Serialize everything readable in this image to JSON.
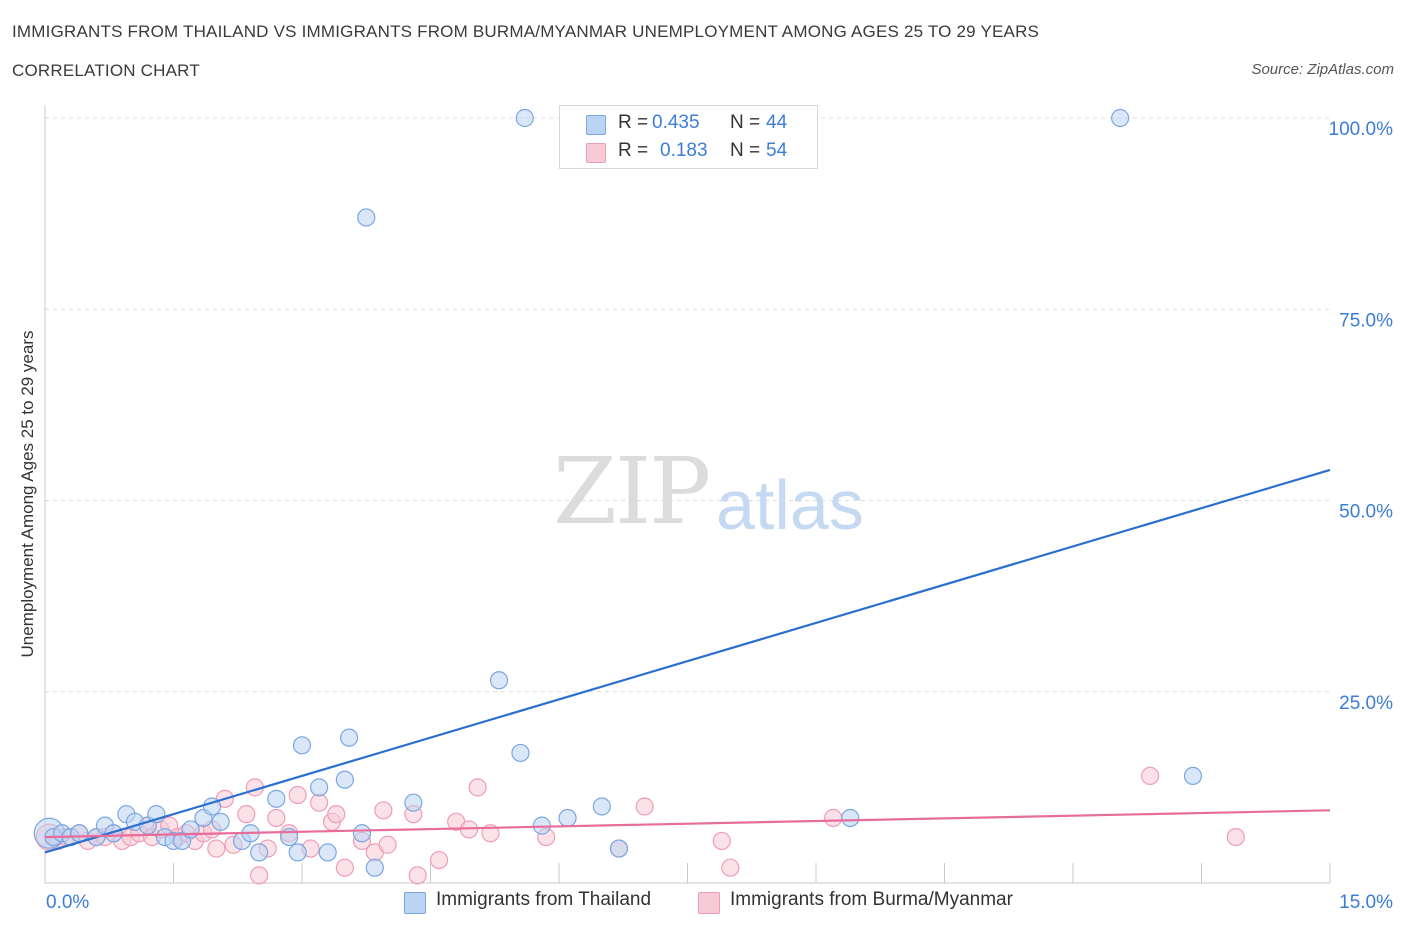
{
  "chart_data": {
    "type": "scatter",
    "title": "IMMIGRANTS FROM THAILAND VS IMMIGRANTS FROM BURMA/MYANMAR UNEMPLOYMENT AMONG AGES 25 TO 29 YEARS",
    "subtitle": "CORRELATION CHART",
    "source": "Source: ZipAtlas.com",
    "ylabel": "Unemployment Among Ages 25 to 29 years",
    "xlim": [
      0,
      15
    ],
    "ylim": [
      0,
      100
    ],
    "x_tick_labels": [
      "0.0%",
      "15.0%"
    ],
    "y_tick_labels": [
      "100.0%",
      "75.0%",
      "50.0%",
      "25.0%"
    ],
    "y_tick_values": [
      100,
      75,
      50,
      25
    ],
    "legend": {
      "rows": [
        {
          "r_label": "R =",
          "r_value": "0.435",
          "n_label": "N =",
          "n_value": "44"
        },
        {
          "r_label": "R =",
          "r_value": "0.183",
          "n_label": "N =",
          "n_value": "54"
        }
      ]
    },
    "watermark": {
      "zip": "ZIP",
      "atlas": "atlas"
    },
    "series": [
      {
        "name": "Immigrants from Thailand",
        "color": "#7aa7e0",
        "fill": "#bcd4f3",
        "line_color": "#2b6fcf",
        "trend": {
          "x": [
            0,
            15
          ],
          "y": [
            4,
            54
          ]
        },
        "points": [
          [
            0.05,
            6.5
          ],
          [
            0.1,
            6
          ],
          [
            0.2,
            6.5
          ],
          [
            0.3,
            6
          ],
          [
            0.4,
            6.5
          ],
          [
            0.6,
            6
          ],
          [
            0.7,
            7.5
          ],
          [
            0.8,
            6.5
          ],
          [
            0.95,
            9
          ],
          [
            1.05,
            8
          ],
          [
            1.2,
            7.5
          ],
          [
            1.3,
            9
          ],
          [
            1.4,
            6
          ],
          [
            1.5,
            5.5
          ],
          [
            1.6,
            5.5
          ],
          [
            1.7,
            7
          ],
          [
            1.85,
            8.5
          ],
          [
            1.95,
            10
          ],
          [
            2.05,
            8
          ],
          [
            2.3,
            5.5
          ],
          [
            2.4,
            6.5
          ],
          [
            2.5,
            4
          ],
          [
            2.7,
            11
          ],
          [
            2.85,
            6
          ],
          [
            2.95,
            4
          ],
          [
            3.0,
            18
          ],
          [
            3.2,
            12.5
          ],
          [
            3.3,
            4
          ],
          [
            3.5,
            13.5
          ],
          [
            3.55,
            19
          ],
          [
            3.7,
            6.5
          ],
          [
            3.85,
            2
          ],
          [
            3.75,
            87
          ],
          [
            4.3,
            10.5
          ],
          [
            5.3,
            26.5
          ],
          [
            5.55,
            17
          ],
          [
            5.6,
            100
          ],
          [
            5.8,
            7.5
          ],
          [
            6.1,
            8.5
          ],
          [
            6.5,
            10
          ],
          [
            6.7,
            4.5
          ],
          [
            9.4,
            8.5
          ],
          [
            12.55,
            100
          ],
          [
            13.4,
            14
          ]
        ]
      },
      {
        "name": "Immigrants from Burma/Myanmar",
        "color": "#ef9db5",
        "fill": "#f8cad7",
        "line_color": "#e86d9a",
        "trend": {
          "x": [
            0,
            15
          ],
          "y": [
            6,
            9.5
          ]
        },
        "points": [
          [
            0.05,
            6
          ],
          [
            0.15,
            5.5
          ],
          [
            0.25,
            6
          ],
          [
            0.4,
            6.5
          ],
          [
            0.5,
            5.5
          ],
          [
            0.6,
            6
          ],
          [
            0.7,
            6
          ],
          [
            0.8,
            6.5
          ],
          [
            0.9,
            5.5
          ],
          [
            1.0,
            6
          ],
          [
            1.1,
            6.5
          ],
          [
            1.2,
            7.5
          ],
          [
            1.25,
            6
          ],
          [
            1.35,
            7
          ],
          [
            1.45,
            7.5
          ],
          [
            1.55,
            6
          ],
          [
            1.65,
            6.5
          ],
          [
            1.75,
            5.5
          ],
          [
            1.85,
            6.5
          ],
          [
            1.95,
            7
          ],
          [
            2.0,
            4.5
          ],
          [
            2.1,
            11
          ],
          [
            2.2,
            5
          ],
          [
            2.35,
            9
          ],
          [
            2.45,
            12.5
          ],
          [
            2.5,
            1
          ],
          [
            2.6,
            4.5
          ],
          [
            2.7,
            8.5
          ],
          [
            2.85,
            6.5
          ],
          [
            2.95,
            11.5
          ],
          [
            3.1,
            4.5
          ],
          [
            3.2,
            10.5
          ],
          [
            3.35,
            8
          ],
          [
            3.4,
            9
          ],
          [
            3.5,
            2
          ],
          [
            3.7,
            5.5
          ],
          [
            3.85,
            4
          ],
          [
            3.95,
            9.5
          ],
          [
            4.0,
            5
          ],
          [
            4.3,
            9
          ],
          [
            4.35,
            1
          ],
          [
            4.6,
            3
          ],
          [
            4.8,
            8
          ],
          [
            4.95,
            7
          ],
          [
            5.05,
            12.5
          ],
          [
            5.2,
            6.5
          ],
          [
            5.85,
            6
          ],
          [
            6.7,
            4.5
          ],
          [
            7.0,
            10
          ],
          [
            7.9,
            5.5
          ],
          [
            8.0,
            2
          ],
          [
            9.2,
            8.5
          ],
          [
            12.9,
            14
          ],
          [
            13.9,
            6
          ]
        ]
      }
    ]
  }
}
